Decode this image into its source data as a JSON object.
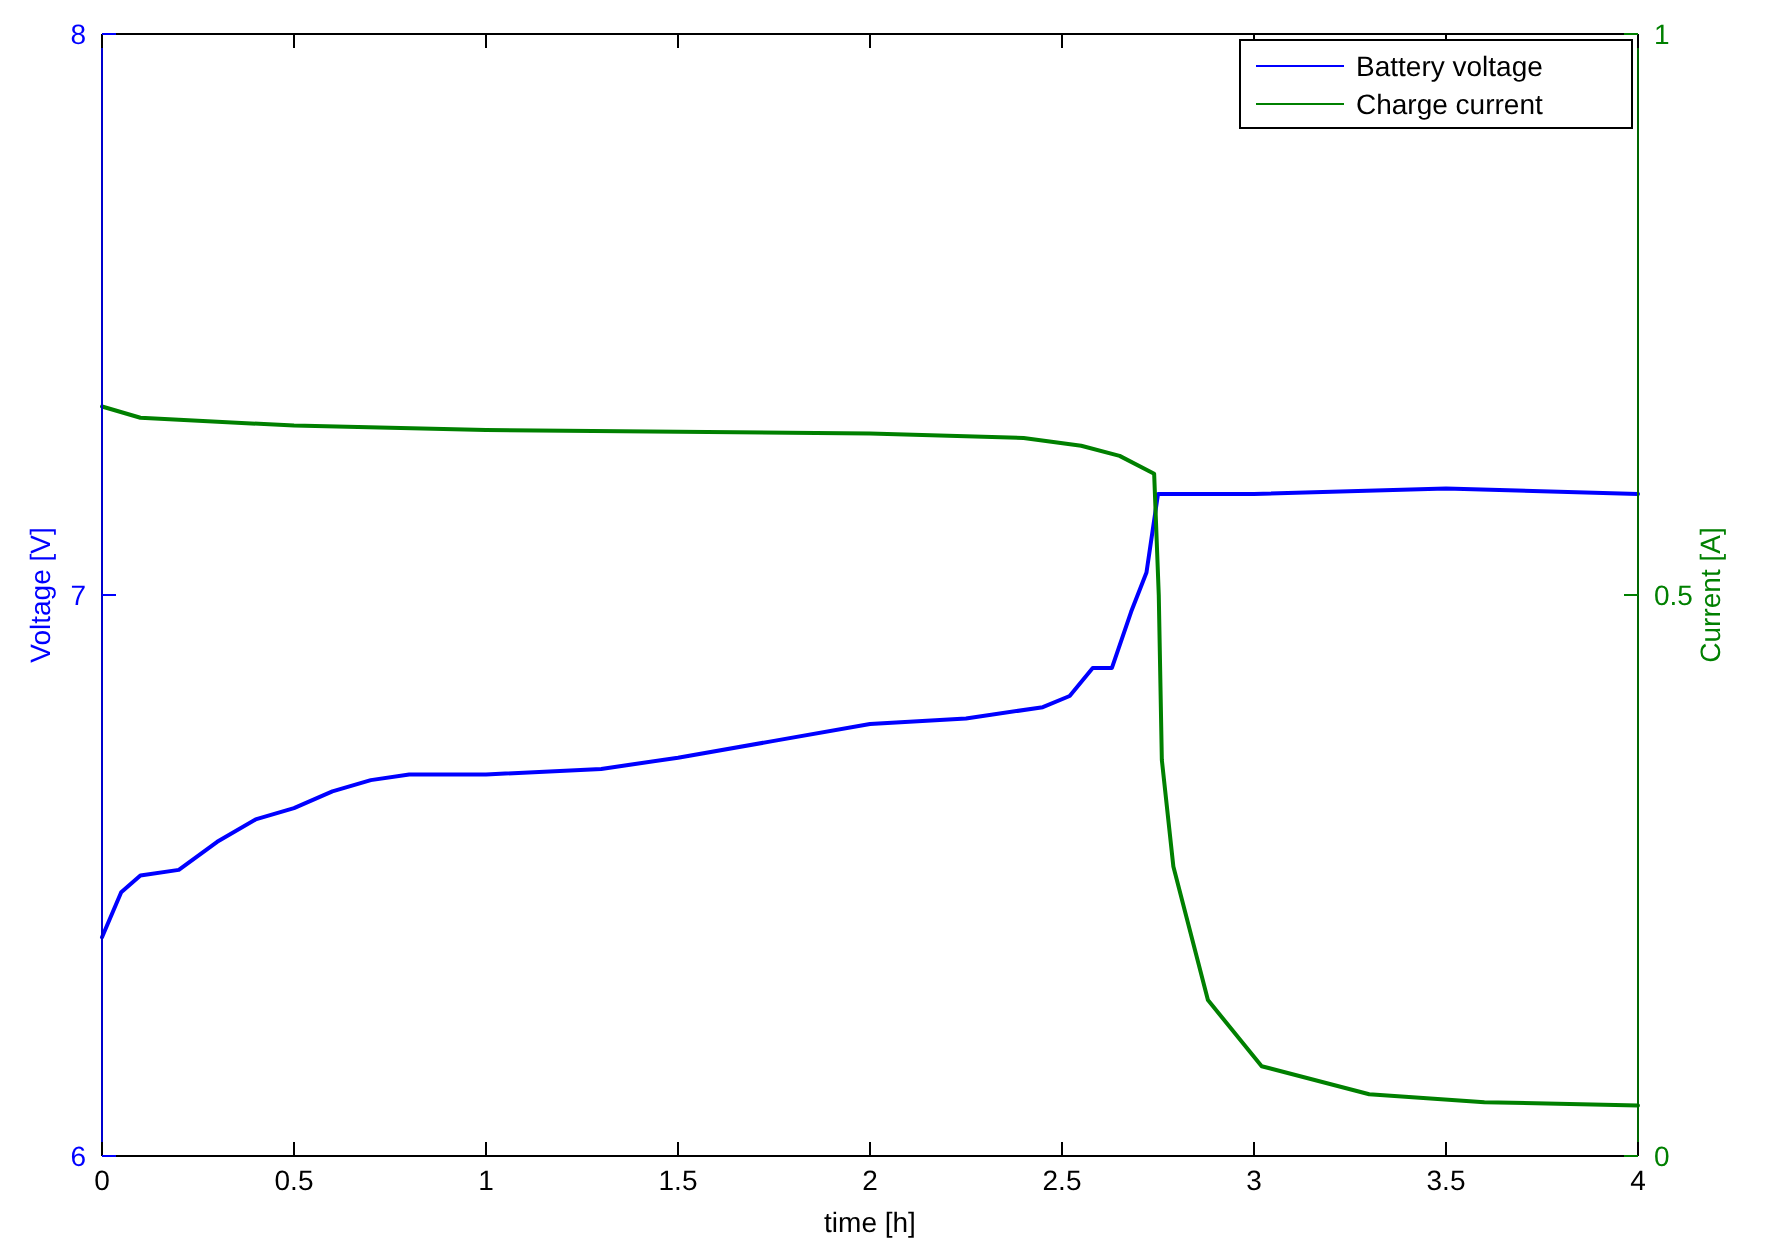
{
  "chart_data": {
    "type": "line",
    "xlabel": "time [h]",
    "ylabel": "Voltage [V]",
    "y2label": "Current [A]",
    "xlim": [
      0,
      4
    ],
    "xticks": [
      0,
      0.5,
      1,
      1.5,
      2,
      2.5,
      3,
      3.5,
      4
    ],
    "ylim": [
      6,
      8
    ],
    "yticks": [
      6,
      7,
      8
    ],
    "y2lim": [
      0,
      1
    ],
    "y2ticks": [
      0,
      0.5,
      1
    ],
    "grid": false,
    "legend": "top right",
    "line_style": "solid",
    "marker": "none",
    "series": [
      {
        "name": "Battery voltage",
        "color": "#0000ff",
        "x": [
          0,
          0.05,
          0.1,
          0.2,
          0.3,
          0.4,
          0.5,
          0.6,
          0.7,
          0.8,
          1.0,
          1.3,
          1.5,
          1.75,
          2.0,
          2.25,
          2.45,
          2.52,
          2.58,
          2.63,
          2.68,
          2.72,
          2.75,
          3.0,
          3.5,
          4.0
        ],
        "values": [
          6.39,
          6.47,
          6.5,
          6.51,
          6.56,
          6.6,
          6.62,
          6.65,
          6.67,
          6.68,
          6.68,
          6.69,
          6.71,
          6.74,
          6.77,
          6.78,
          6.8,
          6.82,
          6.87,
          6.87,
          6.97,
          7.04,
          7.18,
          7.18,
          7.19,
          7.18
        ]
      },
      {
        "name": "Charge current",
        "color": "#008000",
        "axis": "y2",
        "x": [
          0,
          0.1,
          0.5,
          1,
          2,
          2.4,
          2.55,
          2.65,
          2.74,
          2.752,
          2.76,
          2.79,
          2.88,
          3.02,
          3.3,
          3.6,
          4
        ],
        "values": [
          0.668,
          0.658,
          0.651,
          0.647,
          0.644,
          0.64,
          0.633,
          0.624,
          0.608,
          0.5,
          0.353,
          0.258,
          0.139,
          0.08,
          0.055,
          0.048,
          0.045
        ]
      }
    ]
  }
}
